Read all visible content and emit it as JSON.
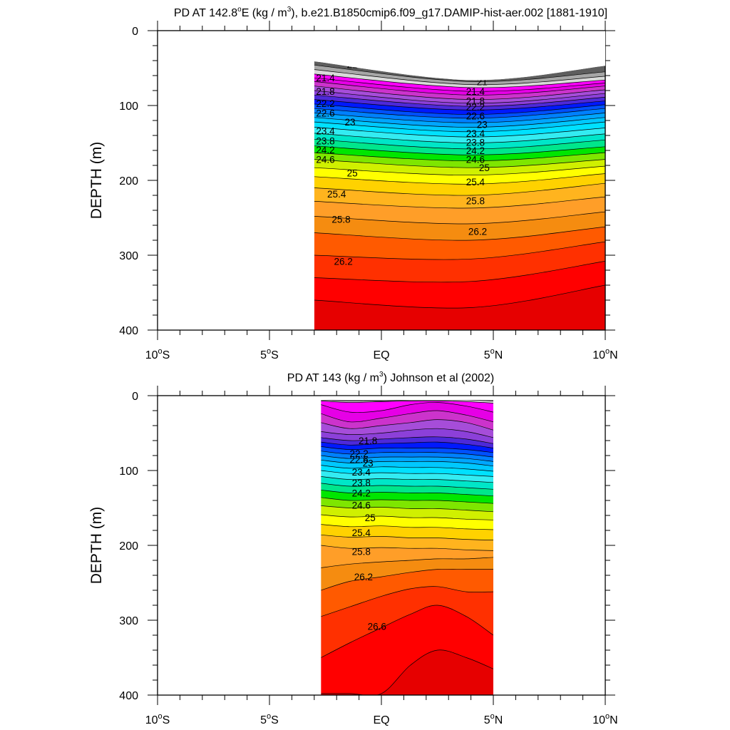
{
  "chart_data": [
    {
      "type": "contour",
      "title_prefix": "PD AT 142.8",
      "title_deg": "o",
      "title_mid": "E (kg / m",
      "title_sup": "3",
      "title_suffix": "), b.e21.B1850cmip6.f09_g17.DAMIP-hist-aer.002 [1881-1910]",
      "ylabel": "DEPTH (m)",
      "x_range": [
        -10,
        10
      ],
      "y_range": [
        0,
        400
      ],
      "y_reversed": true,
      "y_ticks": [
        "0",
        "100",
        "200",
        "300",
        "400"
      ],
      "x_ticks": [
        {
          "num": "10",
          "sup": "o",
          "suf": "S"
        },
        {
          "num": "5",
          "sup": "o",
          "suf": "S"
        },
        {
          "num": "EQ",
          "sup": "",
          "suf": ""
        },
        {
          "num": "5",
          "sup": "o",
          "suf": "N"
        },
        {
          "num": "10",
          "sup": "o",
          "suf": "N"
        }
      ],
      "x_ticks_v": [
        -10,
        -5,
        0,
        5,
        10
      ],
      "data_x_range": [
        -3,
        10
      ],
      "contour_x": [
        -3,
        4,
        10
      ],
      "levels_min": 20.8,
      "levels_step": 0.2,
      "levels_count": 30,
      "surface_depths": [
        41,
        66,
        47
      ],
      "level_depths": [
        [
          46,
          68,
          55
        ],
        [
          52,
          72,
          61
        ],
        [
          58,
          76,
          66
        ],
        [
          63,
          81,
          70
        ],
        [
          68,
          86,
          74
        ],
        [
          74,
          92,
          79
        ],
        [
          80,
          97,
          84
        ],
        [
          86,
          101,
          89
        ],
        [
          92,
          106,
          94
        ],
        [
          98,
          112,
          99
        ],
        [
          104,
          117,
          104
        ],
        [
          110,
          123,
          110
        ],
        [
          116,
          129,
          116
        ],
        [
          122,
          135,
          122
        ],
        [
          129,
          142,
          130
        ],
        [
          137,
          150,
          138
        ],
        [
          145,
          158,
          146
        ],
        [
          154,
          166,
          155
        ],
        [
          163,
          174,
          163
        ],
        [
          172,
          183,
          172
        ],
        [
          183,
          193,
          181
        ],
        [
          195,
          205,
          191
        ],
        [
          210,
          220,
          204
        ],
        [
          228,
          237,
          222
        ],
        [
          248,
          258,
          242
        ],
        [
          270,
          280,
          262
        ],
        [
          300,
          305,
          282
        ],
        [
          330,
          335,
          308
        ],
        [
          360,
          370,
          340
        ]
      ],
      "labels": [
        {
          "v": "21",
          "x": -1.3,
          "y": 45
        },
        {
          "v": "21.4",
          "x": -2.5,
          "y": 63
        },
        {
          "v": "21.8",
          "x": -2.5,
          "y": 81
        },
        {
          "v": "22.2",
          "x": -2.5,
          "y": 97
        },
        {
          "v": "22.6",
          "x": -2.5,
          "y": 110
        },
        {
          "v": "23",
          "x": -1.4,
          "y": 122
        },
        {
          "v": "23.4",
          "x": -2.5,
          "y": 134
        },
        {
          "v": "23.8",
          "x": -2.5,
          "y": 147
        },
        {
          "v": "24.2",
          "x": -2.5,
          "y": 159
        },
        {
          "v": "24.6",
          "x": -2.5,
          "y": 172
        },
        {
          "v": "25",
          "x": -1.3,
          "y": 190
        },
        {
          "v": "25.4",
          "x": -2.0,
          "y": 218
        },
        {
          "v": "25.8",
          "x": -1.8,
          "y": 252
        },
        {
          "v": "26.2",
          "x": -1.7,
          "y": 308
        },
        {
          "v": "21",
          "x": 4.5,
          "y": 68
        },
        {
          "v": "21.4",
          "x": 4.2,
          "y": 81
        },
        {
          "v": "21.8",
          "x": 4.2,
          "y": 94
        },
        {
          "v": "22.2",
          "x": 4.2,
          "y": 102
        },
        {
          "v": "22.6",
          "x": 4.2,
          "y": 114
        },
        {
          "v": "23",
          "x": 4.5,
          "y": 125
        },
        {
          "v": "23.4",
          "x": 4.2,
          "y": 137
        },
        {
          "v": "23.8",
          "x": 4.2,
          "y": 149
        },
        {
          "v": "24.2",
          "x": 4.2,
          "y": 160
        },
        {
          "v": "24.6",
          "x": 4.2,
          "y": 172
        },
        {
          "v": "25",
          "x": 4.6,
          "y": 183
        },
        {
          "v": "25.4",
          "x": 4.2,
          "y": 202
        },
        {
          "v": "25.8",
          "x": 4.2,
          "y": 227
        },
        {
          "v": "26.2",
          "x": 4.3,
          "y": 268
        }
      ]
    },
    {
      "type": "contour",
      "title_prefix": "PD AT 143 (kg / m",
      "title_deg": "",
      "title_mid": "",
      "title_sup": "3",
      "title_suffix": ") Johnson et al (2002)",
      "ylabel": "DEPTH (m)",
      "x_range": [
        -10,
        10
      ],
      "y_range": [
        0,
        400
      ],
      "y_reversed": true,
      "y_ticks": [
        "0",
        "100",
        "200",
        "300",
        "400"
      ],
      "x_ticks": [
        {
          "num": "10",
          "sup": "o",
          "suf": "S"
        },
        {
          "num": "5",
          "sup": "o",
          "suf": "S"
        },
        {
          "num": "EQ",
          "sup": "",
          "suf": ""
        },
        {
          "num": "5",
          "sup": "o",
          "suf": "N"
        },
        {
          "num": "10",
          "sup": "o",
          "suf": "N"
        }
      ],
      "x_ticks_v": [
        -10,
        -5,
        0,
        5,
        10
      ],
      "data_x_range": [
        -2.7,
        5
      ],
      "contour_x": [
        -2.7,
        -1.4,
        0,
        1.3,
        2.5,
        3.8,
        5
      ],
      "levels_min": 20.8,
      "levels_step": 0.2,
      "levels_count": 30,
      "surface_depths": [
        6,
        6,
        6,
        6,
        6,
        6,
        6
      ],
      "level_depths": [
        [
          6,
          6,
          6,
          6,
          6,
          6,
          6
        ],
        [
          6,
          7,
          7,
          6,
          6,
          6,
          7
        ],
        [
          7,
          9,
          8,
          7,
          7,
          8,
          10
        ],
        [
          12,
          22,
          20,
          12,
          9,
          14,
          22
        ],
        [
          24,
          35,
          30,
          24,
          20,
          26,
          35
        ],
        [
          36,
          44,
          40,
          36,
          32,
          36,
          46
        ],
        [
          48,
          52,
          50,
          46,
          44,
          48,
          56
        ],
        [
          56,
          60,
          58,
          56,
          55,
          58,
          64
        ],
        [
          62,
          66,
          64,
          63,
          62,
          65,
          70
        ],
        [
          68,
          72,
          70,
          70,
          70,
          72,
          76
        ],
        [
          74,
          78,
          76,
          76,
          76,
          78,
          82
        ],
        [
          80,
          84,
          82,
          82,
          82,
          84,
          88
        ],
        [
          86,
          90,
          88,
          88,
          88,
          90,
          94
        ],
        [
          93,
          97,
          95,
          96,
          96,
          98,
          101
        ],
        [
          100,
          104,
          103,
          104,
          104,
          106,
          108
        ],
        [
          108,
          112,
          111,
          112,
          112,
          114,
          116
        ],
        [
          117,
          121,
          120,
          121,
          121,
          123,
          125
        ],
        [
          126,
          130,
          129,
          130,
          130,
          132,
          134
        ],
        [
          136,
          140,
          139,
          140,
          140,
          142,
          144
        ],
        [
          147,
          150,
          149,
          151,
          151,
          153,
          155
        ],
        [
          159,
          162,
          161,
          163,
          163,
          165,
          166
        ],
        [
          172,
          175,
          174,
          176,
          176,
          178,
          179
        ],
        [
          186,
          189,
          188,
          190,
          190,
          192,
          193
        ],
        [
          200,
          204,
          203,
          204,
          204,
          206,
          207
        ],
        [
          230,
          225,
          222,
          220,
          218,
          218,
          216
        ],
        [
          260,
          248,
          242,
          236,
          232,
          232,
          232
        ],
        [
          295,
          282,
          268,
          258,
          255,
          262,
          262
        ],
        [
          350,
          330,
          310,
          292,
          280,
          295,
          320
        ],
        [
          398,
          398,
          398,
          360,
          340,
          350,
          365
        ]
      ],
      "labels": [
        {
          "v": "21.8",
          "x": -0.6,
          "y": 60
        },
        {
          "v": "22.2",
          "x": -1.0,
          "y": 77
        },
        {
          "v": "22.6",
          "x": -1.0,
          "y": 85
        },
        {
          "v": "23",
          "x": -0.6,
          "y": 90
        },
        {
          "v": "23.4",
          "x": -0.9,
          "y": 102
        },
        {
          "v": "23.8",
          "x": -0.9,
          "y": 116
        },
        {
          "v": "24.2",
          "x": -0.9,
          "y": 130
        },
        {
          "v": "24.6",
          "x": -0.9,
          "y": 146
        },
        {
          "v": "25",
          "x": -0.5,
          "y": 163
        },
        {
          "v": "25.4",
          "x": -0.9,
          "y": 183
        },
        {
          "v": "25.8",
          "x": -0.9,
          "y": 208
        },
        {
          "v": "26.2",
          "x": -0.8,
          "y": 242
        },
        {
          "v": "26.6",
          "x": -0.2,
          "y": 308
        }
      ]
    }
  ],
  "colormap": [
    "#5e5e5e",
    "#a6a6a6",
    "#d9d9d9",
    "#ff00ff",
    "#e600e6",
    "#cc33cc",
    "#a64dd9",
    "#8c40d9",
    "#4d29d9",
    "#0019ff",
    "#0050ff",
    "#0080ff",
    "#00a6ff",
    "#00c8ff",
    "#00e1ff",
    "#33ecf2",
    "#00e6c8",
    "#00e68c",
    "#00e600",
    "#7ee600",
    "#d0f000",
    "#ffff00",
    "#ffd200",
    "#ffb41e",
    "#ff9e28",
    "#f58c10",
    "#ff5a00",
    "#ff3000",
    "#ff0000",
    "#e60000",
    "#c80000"
  ]
}
